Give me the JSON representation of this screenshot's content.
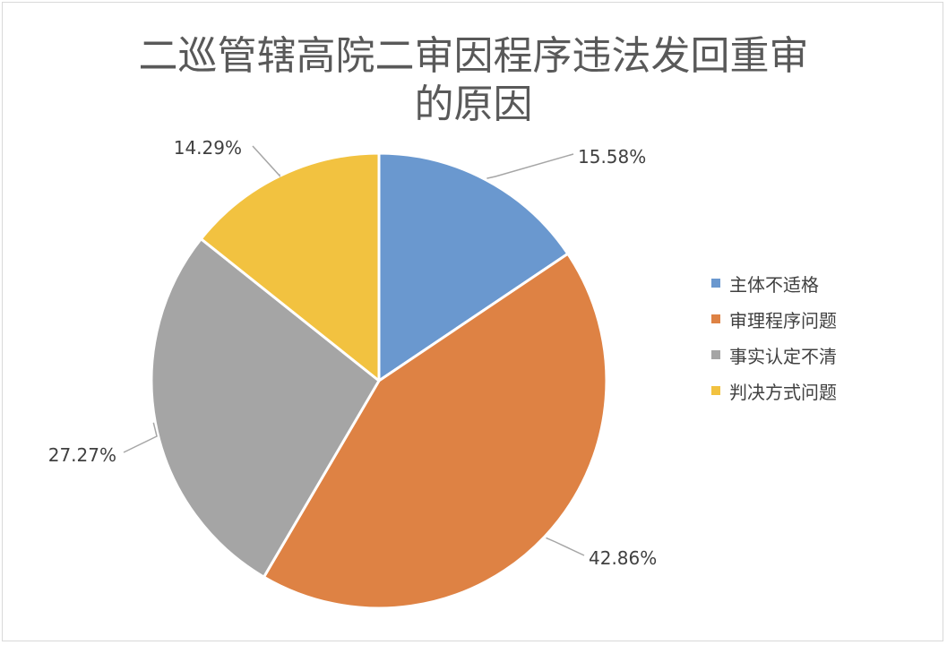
{
  "chart_data": {
    "type": "pie",
    "title_lines": [
      "二巡管辖高院二审因程序违法发回重审",
      "的原因"
    ],
    "series": [
      {
        "name": "主体不适格",
        "value": 15.58,
        "label": "15.58%",
        "color": "#6a98cf"
      },
      {
        "name": "审理程序问题",
        "value": 42.86,
        "label": "42.86%",
        "color": "#de8244"
      },
      {
        "name": "事实认定不清",
        "value": 27.27,
        "label": "27.27%",
        "color": "#a5a5a5"
      },
      {
        "name": "判决方式问题",
        "value": 14.29,
        "label": "14.29%",
        "color": "#f2c240"
      }
    ],
    "start_angle": "12 o'clock",
    "direction": "clockwise",
    "legend_position": "right"
  }
}
